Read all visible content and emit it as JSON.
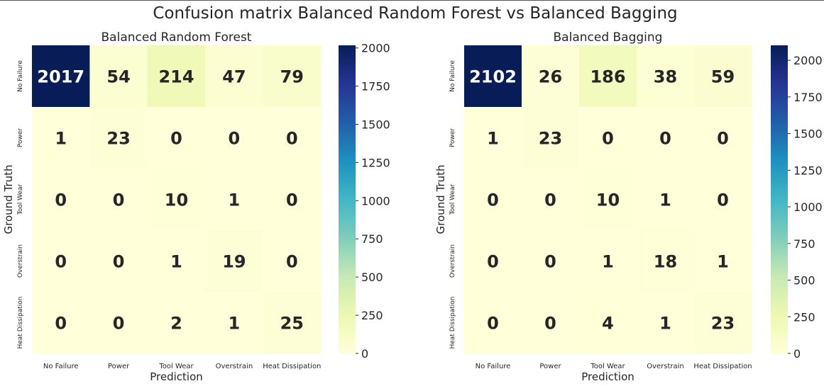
{
  "suptitle": "Confusion matrix Balanced Random Forest vs Balanced Bagging",
  "colormap": {
    "name": "YlGnBu",
    "stops": [
      "#ffffd9",
      "#edf8b1",
      "#c7e9b4",
      "#7fcdbb",
      "#41b6c4",
      "#1d91c0",
      "#225ea8",
      "#253494",
      "#081d58"
    ]
  },
  "text_colors": {
    "dark": "#262626",
    "light": "#ffffff"
  },
  "chart_data": [
    {
      "type": "heatmap",
      "title": "Balanced Random Forest",
      "xlabel": "Prediction",
      "ylabel": "Ground Truth",
      "x_categories": [
        "No Failure",
        "Power",
        "Tool Wear",
        "Overstrain",
        "Heat Dissipation"
      ],
      "y_categories": [
        "No Failure",
        "Power",
        "Tool Wear",
        "Overstrain",
        "Heat Dissipation"
      ],
      "values": [
        [
          2017,
          54,
          214,
          47,
          79
        ],
        [
          1,
          23,
          0,
          0,
          0
        ],
        [
          0,
          0,
          10,
          1,
          0
        ],
        [
          0,
          0,
          1,
          19,
          0
        ],
        [
          0,
          0,
          2,
          1,
          25
        ]
      ],
      "vmin": 0,
      "vmax": 2017,
      "colorbar_ticks": [
        0,
        250,
        500,
        750,
        1000,
        1250,
        1500,
        1750,
        2000
      ]
    },
    {
      "type": "heatmap",
      "title": "Balanced Bagging",
      "xlabel": "Prediction",
      "ylabel": "Ground Truth",
      "x_categories": [
        "No Failure",
        "Power",
        "Tool Wear",
        "Overstrain",
        "Heat Dissipation"
      ],
      "y_categories": [
        "No Failure",
        "Power",
        "Tool Wear",
        "Overstrain",
        "Heat Dissipation"
      ],
      "values": [
        [
          2102,
          26,
          186,
          38,
          59
        ],
        [
          1,
          23,
          0,
          0,
          0
        ],
        [
          0,
          0,
          10,
          1,
          0
        ],
        [
          0,
          0,
          1,
          18,
          1
        ],
        [
          0,
          0,
          4,
          1,
          23
        ]
      ],
      "vmin": 0,
      "vmax": 2102,
      "colorbar_ticks": [
        0,
        250,
        500,
        750,
        1000,
        1250,
        1500,
        1750,
        2000
      ]
    }
  ]
}
